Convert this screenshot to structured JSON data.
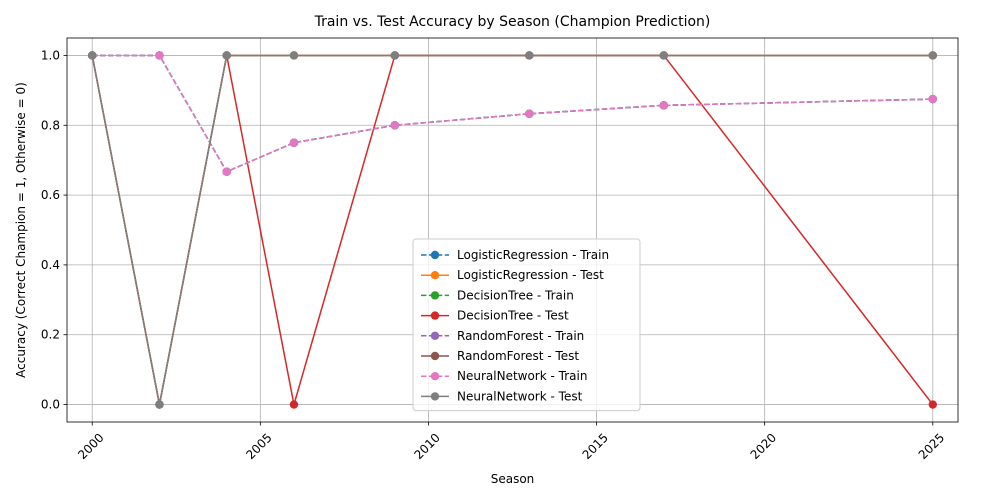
{
  "chart_data": {
    "type": "line",
    "title": "Train vs. Test Accuracy by Season (Champion Prediction)",
    "xlabel": "Season",
    "ylabel": "Accuracy (Correct Champion = 1, Otherwise = 0)",
    "xlim": [
      1999.25,
      2025.75
    ],
    "ylim": [
      -0.05,
      1.05
    ],
    "xticks": [
      2000,
      2005,
      2010,
      2015,
      2020,
      2025
    ],
    "yticks": [
      0.0,
      0.2,
      0.4,
      0.6,
      0.8,
      1.0
    ],
    "xtick_labels": [
      "2000",
      "2005",
      "2010",
      "2015",
      "2020",
      "2025"
    ],
    "ytick_labels": [
      "0.0",
      "0.2",
      "0.4",
      "0.6",
      "0.8",
      "1.0"
    ],
    "grid": true,
    "legend_position": "lower-center",
    "x": [
      2000,
      2002,
      2004,
      2006,
      2009,
      2013,
      2017,
      2025
    ],
    "series": [
      {
        "name": "LogisticRegression - Train",
        "color": "#1f77b4",
        "style": "dashed",
        "values": [
          1.0,
          1.0,
          0.667,
          0.75,
          0.8,
          0.833,
          0.857,
          0.875
        ]
      },
      {
        "name": "LogisticRegression - Test",
        "color": "#ff7f0e",
        "style": "solid",
        "values": [
          1,
          0,
          1,
          1,
          1,
          1,
          1,
          1
        ]
      },
      {
        "name": "DecisionTree - Train",
        "color": "#2ca02c",
        "style": "dashed",
        "values": [
          1.0,
          1.0,
          0.667,
          0.75,
          0.8,
          0.833,
          0.857,
          0.875
        ]
      },
      {
        "name": "DecisionTree - Test",
        "color": "#d62728",
        "style": "solid",
        "values": [
          1,
          0,
          1,
          0,
          1,
          1,
          1,
          0
        ]
      },
      {
        "name": "RandomForest - Train",
        "color": "#9467bd",
        "style": "dashed",
        "values": [
          1.0,
          1.0,
          0.667,
          0.75,
          0.8,
          0.833,
          0.857,
          0.875
        ]
      },
      {
        "name": "RandomForest - Test",
        "color": "#8c564b",
        "style": "solid",
        "values": [
          1,
          0,
          1,
          1,
          1,
          1,
          1,
          1
        ]
      },
      {
        "name": "NeuralNetwork - Train",
        "color": "#e377c2",
        "style": "dashed",
        "values": [
          1.0,
          1.0,
          0.667,
          0.75,
          0.8,
          0.833,
          0.857,
          0.875
        ]
      },
      {
        "name": "NeuralNetwork - Test",
        "color": "#7f7f7f",
        "style": "solid",
        "values": [
          1,
          0,
          1,
          1,
          1,
          1,
          1,
          1
        ]
      }
    ]
  }
}
